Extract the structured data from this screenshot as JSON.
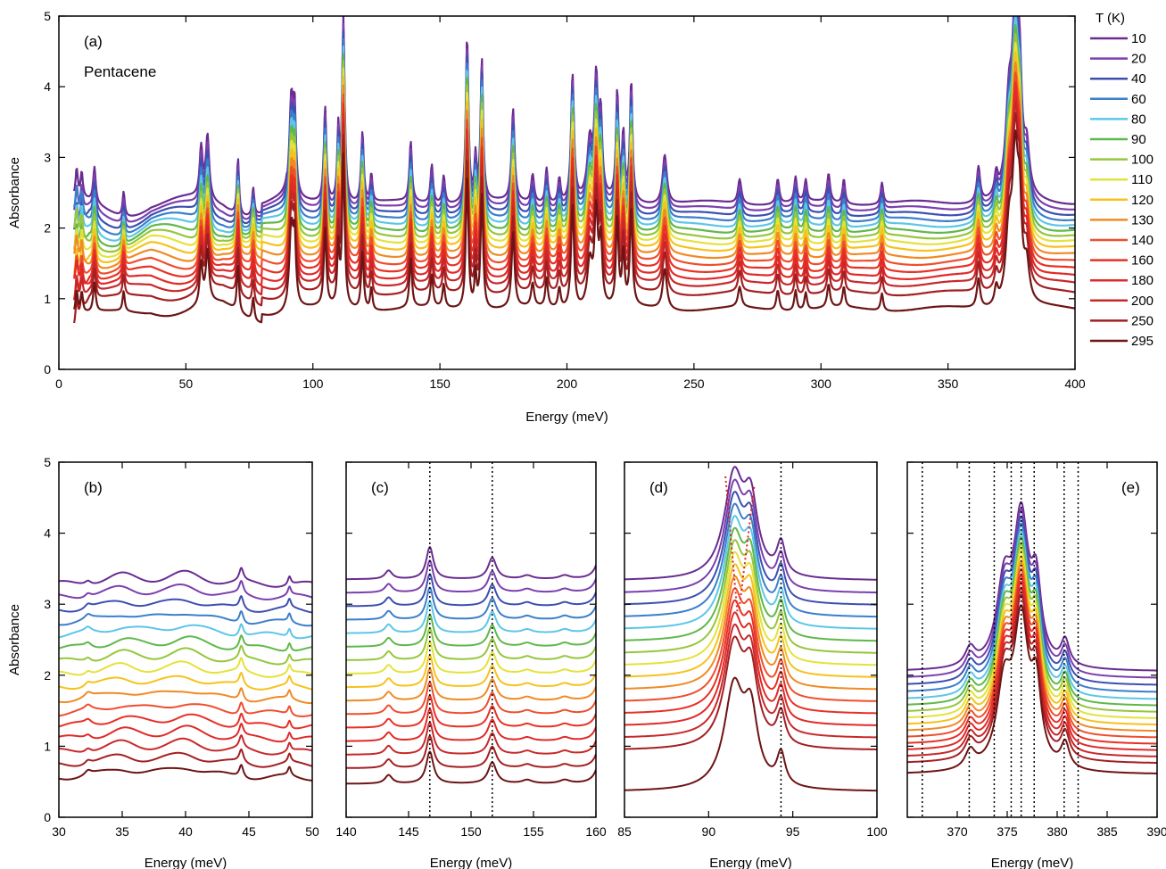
{
  "temperature_colors": {
    "10": "#6a2c91",
    "20": "#7b3fae",
    "40": "#3d4fb0",
    "60": "#3a7fca",
    "80": "#5cc6e8",
    "90": "#5fb84a",
    "100": "#96c63c",
    "110": "#e4e23a",
    "120": "#f6c21c",
    "130": "#f08a24",
    "140": "#ef4e2d",
    "160": "#e83025",
    "180": "#e02a28",
    "200": "#c8282a",
    "250": "#a31f22",
    "295": "#6e1414"
  },
  "legend": {
    "title": "T (K)",
    "entries": [
      "10",
      "20",
      "40",
      "60",
      "80",
      "90",
      "100",
      "110",
      "120",
      "130",
      "140",
      "160",
      "180",
      "200",
      "250",
      "295"
    ]
  },
  "chart_data": [
    {
      "panel": "(a)",
      "type": "line",
      "annotation": "Pentacene",
      "xlabel": "Energy (meV)",
      "ylabel": "Absorbance",
      "xlim": [
        0,
        400
      ],
      "ylim": [
        0,
        5
      ],
      "x_ticks": [
        "0",
        "50",
        "100",
        "150",
        "200",
        "250",
        "300",
        "350",
        "400"
      ],
      "y_ticks": [
        "0",
        "1",
        "2",
        "3",
        "4",
        "5"
      ],
      "series_temperatures_K": [
        10,
        20,
        40,
        60,
        80,
        90,
        100,
        110,
        120,
        130,
        140,
        160,
        180,
        200,
        250,
        295
      ],
      "baseline_at_300meV": [
        2.35,
        2.27,
        2.19,
        2.11,
        2.03,
        1.95,
        1.87,
        1.79,
        1.7,
        1.6,
        1.5,
        1.4,
        1.3,
        1.2,
        1.07,
        0.85
      ],
      "peaks": [
        {
          "x": 7,
          "height": 0.4,
          "width": 0.5
        },
        {
          "x": 9,
          "height": 0.35,
          "width": 0.5
        },
        {
          "x": 14,
          "height": 0.5,
          "width": 0.6
        },
        {
          "x": 25.5,
          "height": 0.35,
          "width": 0.5
        },
        {
          "x": 56,
          "height": 0.7,
          "width": 0.7
        },
        {
          "x": 58.5,
          "height": 0.9,
          "width": 0.8
        },
        {
          "x": 70.5,
          "height": 0.8,
          "width": 0.5
        },
        {
          "x": 76.5,
          "height": 0.4,
          "width": 0.5
        },
        {
          "x": 91.5,
          "height": 1.4,
          "width": 0.9
        },
        {
          "x": 92.8,
          "height": 1.1,
          "width": 0.6
        },
        {
          "x": 104.8,
          "height": 1.35,
          "width": 0.6
        },
        {
          "x": 110,
          "height": 1.0,
          "width": 0.5
        },
        {
          "x": 112,
          "height": 2.6,
          "width": 0.6
        },
        {
          "x": 119.5,
          "height": 1.0,
          "width": 0.6
        },
        {
          "x": 123,
          "height": 0.4,
          "width": 0.5
        },
        {
          "x": 138.5,
          "height": 0.85,
          "width": 0.6
        },
        {
          "x": 146.8,
          "height": 0.55,
          "width": 0.6
        },
        {
          "x": 151.5,
          "height": 0.4,
          "width": 0.6
        },
        {
          "x": 160.7,
          "height": 2.35,
          "width": 0.6
        },
        {
          "x": 164,
          "height": 0.6,
          "width": 0.5
        },
        {
          "x": 166.5,
          "height": 2.0,
          "width": 0.6
        },
        {
          "x": 178.8,
          "height": 1.3,
          "width": 0.7
        },
        {
          "x": 186.5,
          "height": 0.4,
          "width": 0.7
        },
        {
          "x": 192,
          "height": 0.5,
          "width": 0.6
        },
        {
          "x": 197,
          "height": 0.35,
          "width": 0.6
        },
        {
          "x": 202.2,
          "height": 1.8,
          "width": 0.7
        },
        {
          "x": 209,
          "height": 0.8,
          "width": 1.2
        },
        {
          "x": 211.5,
          "height": 1.6,
          "width": 0.8
        },
        {
          "x": 213.3,
          "height": 1.1,
          "width": 0.7
        },
        {
          "x": 219.8,
          "height": 1.5,
          "width": 0.6
        },
        {
          "x": 222.2,
          "height": 0.9,
          "width": 0.6
        },
        {
          "x": 225.3,
          "height": 1.7,
          "width": 0.6
        },
        {
          "x": 238.5,
          "height": 0.7,
          "width": 1.0
        },
        {
          "x": 268,
          "height": 0.35,
          "width": 0.8
        },
        {
          "x": 283,
          "height": 0.35,
          "width": 0.7
        },
        {
          "x": 290,
          "height": 0.35,
          "width": 0.6
        },
        {
          "x": 294,
          "height": 0.3,
          "width": 0.6
        },
        {
          "x": 303,
          "height": 0.4,
          "width": 0.7
        },
        {
          "x": 309,
          "height": 0.35,
          "width": 0.6
        },
        {
          "x": 324,
          "height": 0.3,
          "width": 0.6
        },
        {
          "x": 362,
          "height": 0.5,
          "width": 0.8
        },
        {
          "x": 369,
          "height": 0.3,
          "width": 0.8
        },
        {
          "x": 374,
          "height": 1.2,
          "width": 1.5
        },
        {
          "x": 376.5,
          "height": 2.4,
          "width": 1.4
        },
        {
          "x": 378.2,
          "height": 1.3,
          "width": 1.0
        },
        {
          "x": 381,
          "height": 0.6,
          "width": 1.2
        }
      ]
    },
    {
      "panel": "(b)",
      "type": "line",
      "xlabel": "Energy (meV)",
      "ylabel": "Absorbance",
      "xlim": [
        30,
        50
      ],
      "ylim": [
        0,
        5
      ],
      "x_ticks": [
        "30",
        "35",
        "40",
        "45",
        "50"
      ],
      "y_ticks": [
        "0",
        "1",
        "2",
        "3",
        "4",
        "5"
      ],
      "series_temperatures_K": [
        10,
        20,
        40,
        60,
        80,
        90,
        100,
        110,
        120,
        130,
        140,
        160,
        180,
        200,
        250,
        295
      ],
      "baseline_offsets": [
        3.27,
        3.09,
        2.91,
        2.73,
        2.55,
        2.36,
        2.18,
        2.0,
        1.82,
        1.64,
        1.45,
        1.27,
        1.09,
        0.91,
        0.73,
        0.55
      ],
      "peaks": [
        {
          "x": 32.3,
          "height": 0.06,
          "width": 0.3
        },
        {
          "x": 35,
          "height": 0.12,
          "width": 1.6
        },
        {
          "x": 40,
          "height": 0.15,
          "width": 1.8
        },
        {
          "x": 44.4,
          "height": 0.18,
          "width": 0.2
        },
        {
          "x": 48.2,
          "height": 0.12,
          "width": 0.15
        }
      ]
    },
    {
      "panel": "(c)",
      "type": "line",
      "xlabel": "Energy (meV)",
      "xlim": [
        140,
        160
      ],
      "ylim": [
        0,
        5
      ],
      "x_ticks": [
        "140",
        "145",
        "150",
        "155",
        "160"
      ],
      "series_temperatures_K": [
        10,
        20,
        40,
        60,
        80,
        90,
        100,
        110,
        120,
        130,
        140,
        160,
        180,
        200,
        250,
        295
      ],
      "baseline_offsets": [
        3.35,
        3.16,
        2.97,
        2.78,
        2.59,
        2.4,
        2.21,
        2.02,
        1.83,
        1.64,
        1.45,
        1.26,
        1.07,
        0.88,
        0.69,
        0.47
      ],
      "vertical_markers": [
        146.7,
        151.7
      ],
      "peaks": [
        {
          "x": 143.4,
          "height": 0.12,
          "width": 0.35
        },
        {
          "x": 146.7,
          "height": 0.45,
          "width": 0.35
        },
        {
          "x": 151.7,
          "height": 0.3,
          "width": 0.4
        },
        {
          "x": 154.5,
          "height": 0.05,
          "width": 0.5
        },
        {
          "x": 157.5,
          "height": 0.05,
          "width": 0.5
        },
        {
          "x": 160.5,
          "height": 0.5,
          "width": 0.4
        }
      ]
    },
    {
      "panel": "(d)",
      "type": "line",
      "xlabel": "Energy (meV)",
      "xlim": [
        85,
        100
      ],
      "ylim": [
        0,
        5
      ],
      "x_ticks": [
        "85",
        "90",
        "95",
        "100"
      ],
      "series_temperatures_K": [
        10,
        20,
        40,
        60,
        80,
        90,
        100,
        110,
        120,
        130,
        140,
        160,
        180,
        200,
        250,
        295
      ],
      "baseline_offsets": [
        3.33,
        3.15,
        2.98,
        2.81,
        2.64,
        2.47,
        2.3,
        2.13,
        1.96,
        1.79,
        1.62,
        1.45,
        1.28,
        1.11,
        0.94,
        0.36
      ],
      "vertical_markers": [
        94.3
      ],
      "red_dotted_trend": {
        "x": [
          91.0,
          91.8
        ],
        "ylim": [
          2.9,
          4.8
        ]
      },
      "peaks": [
        {
          "x": 91.5,
          "height": 1.4,
          "width": 0.7
        },
        {
          "x": 92.5,
          "height": 0.95,
          "width": 0.5
        },
        {
          "x": 94.3,
          "height": 0.45,
          "width": 0.3
        }
      ]
    },
    {
      "panel": "(e)",
      "type": "line",
      "xlabel": "Energy (meV)",
      "xlim": [
        365,
        390
      ],
      "ylim": [
        0,
        5
      ],
      "x_ticks": [
        "370",
        "375",
        "380",
        "385",
        "390"
      ],
      "series_temperatures_K": [
        10,
        20,
        40,
        60,
        80,
        90,
        100,
        110,
        120,
        130,
        140,
        160,
        180,
        200,
        250,
        295
      ],
      "baseline_offsets": [
        2.05,
        1.95,
        1.85,
        1.75,
        1.65,
        1.56,
        1.47,
        1.38,
        1.29,
        1.2,
        1.11,
        1.02,
        0.93,
        0.84,
        0.75,
        0.6
      ],
      "vertical_markers": [
        366.5,
        371.2,
        373.7,
        375.4,
        376.4,
        377.7,
        380.7,
        382.1
      ],
      "peaks": [
        {
          "x": 371.3,
          "height": 0.25,
          "width": 0.6
        },
        {
          "x": 374.7,
          "height": 1.1,
          "width": 0.9
        },
        {
          "x": 376.4,
          "height": 2.0,
          "width": 0.9
        },
        {
          "x": 377.9,
          "height": 1.0,
          "width": 0.6
        },
        {
          "x": 380.8,
          "height": 0.35,
          "width": 0.5
        }
      ]
    }
  ]
}
